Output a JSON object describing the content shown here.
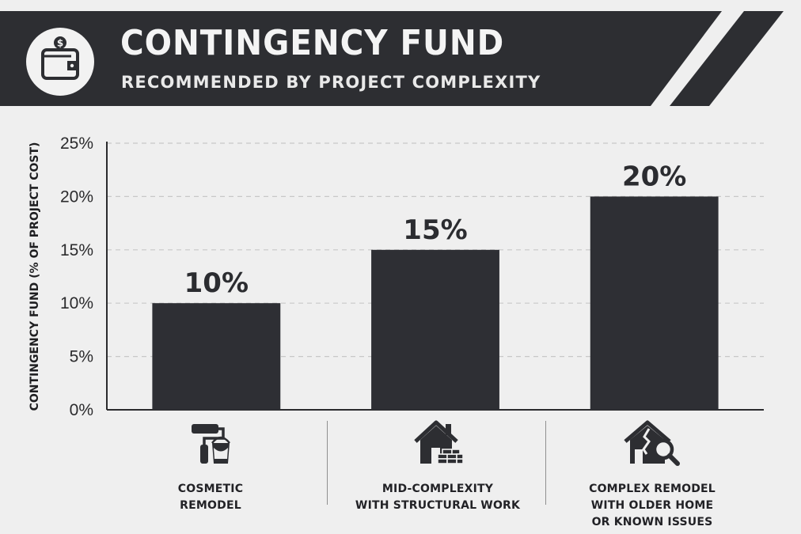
{
  "header": {
    "title": "CONTINGENCY FUND",
    "subtitle": "RECOMMENDED BY PROJECT COMPLEXITY",
    "icon": "wallet-dollar-icon"
  },
  "colors": {
    "banner": "#2d2e32",
    "bar": "#2e2f34",
    "background": "#efefef",
    "grid": "#c8c8c8"
  },
  "chart_data": {
    "type": "bar",
    "categories": [
      "COSMETIC\nREMODEL",
      "MID-COMPLEXITY\nWITH STRUCTURAL WORK",
      "COMPLEX REMODEL\nWITH OLDER HOME\nOR KNOWN ISSUES"
    ],
    "values": [
      10,
      15,
      20
    ],
    "data_labels": [
      "10%",
      "15%",
      "20%"
    ],
    "ylabel": "CONTINGENCY FUND (% OF PROJECT COST)",
    "xlabel": "",
    "ylim": [
      0,
      25
    ],
    "yticks": [
      0,
      5,
      10,
      15,
      20,
      25
    ],
    "ytick_labels": [
      "0%",
      "5%",
      "10%",
      "15%",
      "20%",
      "25%"
    ],
    "grid": "horizontal dashed",
    "legend": "none"
  },
  "categories": [
    {
      "label": "COSMETIC\nREMODEL",
      "icon": "paint-roller-icon"
    },
    {
      "label": "MID-COMPLEXITY\nWITH STRUCTURAL WORK",
      "icon": "house-bricks-icon"
    },
    {
      "label": "COMPLEX REMODEL\nWITH OLDER HOME\nOR KNOWN ISSUES",
      "icon": "cracked-house-magnifier-icon"
    }
  ]
}
